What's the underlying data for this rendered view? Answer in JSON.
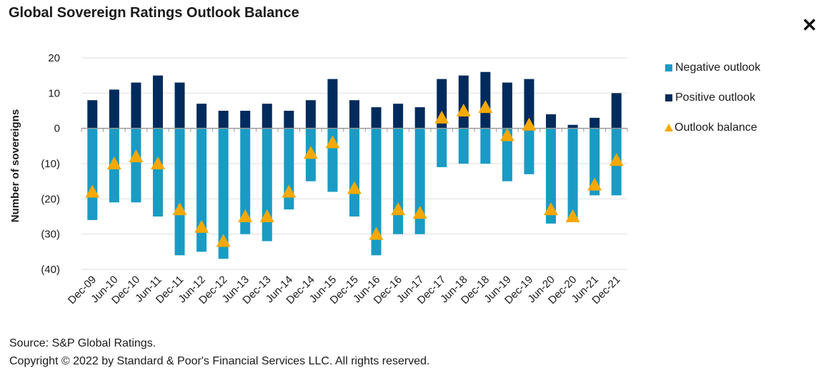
{
  "window": {
    "close_label": "✕",
    "close_icon": "close-icon"
  },
  "chart_data": {
    "type": "bar",
    "title": "Global Sovereign Ratings Outlook Balance",
    "xlabel": "",
    "ylabel": "Number of sovereigns",
    "ylim": [
      -40,
      20
    ],
    "yticks": [
      20,
      10,
      0,
      -10,
      -20,
      -30,
      -40
    ],
    "ytick_labels": [
      "20",
      "10",
      "0",
      "(10)",
      "(20)",
      "(30)",
      "(40)"
    ],
    "grid": true,
    "legend_position": "right",
    "categories": [
      "Dec-09",
      "Jun-10",
      "Dec-10",
      "Jun-11",
      "Dec-11",
      "Jun-12",
      "Dec-12",
      "Jun-13",
      "Dec-13",
      "Jun-14",
      "Dec-14",
      "Jun-15",
      "Dec-15",
      "Jun-16",
      "Dec-16",
      "Jun-17",
      "Dec-17",
      "Jun-18",
      "Dec-18",
      "Jun-19",
      "Dec-19",
      "Jun-20",
      "Dec-20",
      "Jun-21",
      "Dec-21"
    ],
    "series": [
      {
        "name": "Negative outlook",
        "type": "bar",
        "color": "#1a9bc4",
        "values": [
          -26,
          -21,
          -21,
          -25,
          -36,
          -35,
          -37,
          -30,
          -32,
          -23,
          -15,
          -18,
          -25,
          -36,
          -30,
          -30,
          -11,
          -10,
          -10,
          -15,
          -13,
          -27,
          -26,
          -19,
          -19
        ]
      },
      {
        "name": "Positive outlook",
        "type": "bar",
        "color": "#002b5c",
        "values": [
          8,
          11,
          13,
          15,
          13,
          7,
          5,
          5,
          7,
          5,
          8,
          14,
          8,
          6,
          7,
          6,
          14,
          15,
          16,
          13,
          14,
          4,
          1,
          3,
          10
        ]
      },
      {
        "name": "Outlook balance",
        "type": "marker",
        "marker": "triangle",
        "color": "#f5a800",
        "values": [
          -18,
          -10,
          -8,
          -10,
          -23,
          -28,
          -32,
          -25,
          -25,
          -18,
          -7,
          -4,
          -17,
          -30,
          -23,
          -24,
          3,
          5,
          6,
          -2,
          1,
          -23,
          -25,
          -16,
          -9
        ]
      }
    ]
  },
  "legend": {
    "items": [
      {
        "label": "Negative outlook",
        "color": "#1a9bc4"
      },
      {
        "label": "Positive outlook",
        "color": "#002b5c"
      },
      {
        "label": "Outlook balance",
        "color": "#f5a800"
      }
    ]
  },
  "footer": {
    "source": "Source: S&P Global Ratings.",
    "copyright": "Copyright © 2022 by Standard & Poor's Financial Services LLC. All rights reserved."
  }
}
